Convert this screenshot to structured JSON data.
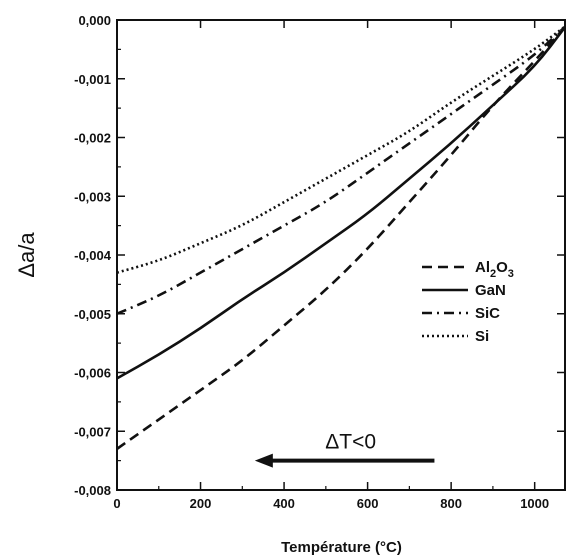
{
  "chart_data": {
    "type": "line",
    "title": "",
    "xlabel": "Température (°C)",
    "ylabel": "Δa/a",
    "xlim": [
      0,
      1075
    ],
    "ylim": [
      -0.008,
      0.0
    ],
    "x_ticks": [
      0,
      200,
      400,
      600,
      800,
      1000
    ],
    "x_tick_labels": [
      "0",
      "200",
      "400",
      "600",
      "800",
      "1000"
    ],
    "y_ticks": [
      0.0,
      -0.001,
      -0.002,
      -0.003,
      -0.004,
      -0.005,
      -0.006,
      -0.007,
      -0.008
    ],
    "y_tick_labels": [
      "0,000",
      "-0,001",
      "-0,002",
      "-0,003",
      "-0,004",
      "-0,005",
      "-0,006",
      "-0,007",
      "-0,008"
    ],
    "grid": false,
    "legend_position": "right-middle",
    "series": [
      {
        "name": "Al2O3",
        "legend_main": "Al",
        "legend_sub1": "2",
        "legend_mid": "O",
        "legend_sub2": "3",
        "style": "dashed",
        "x": [
          0,
          100,
          200,
          300,
          400,
          500,
          600,
          700,
          800,
          900,
          1000,
          1075
        ],
        "y": [
          -0.0073,
          -0.0068,
          -0.0063,
          -0.0058,
          -0.0052,
          -0.0046,
          -0.0039,
          -0.0031,
          -0.0023,
          -0.00145,
          -0.0007,
          -0.0001
        ]
      },
      {
        "name": "GaN",
        "style": "solid",
        "x": [
          0,
          100,
          200,
          300,
          400,
          500,
          600,
          700,
          800,
          900,
          1000,
          1075
        ],
        "y": [
          -0.0061,
          -0.0057,
          -0.00525,
          -0.00475,
          -0.0043,
          -0.0038,
          -0.0033,
          -0.0027,
          -0.0021,
          -0.00145,
          -0.0008,
          -0.0001
        ]
      },
      {
        "name": "SiC",
        "style": "dashdot",
        "x": [
          0,
          100,
          200,
          300,
          400,
          500,
          600,
          700,
          800,
          900,
          1000,
          1075
        ],
        "y": [
          -0.005,
          -0.0047,
          -0.0043,
          -0.0039,
          -0.0035,
          -0.0031,
          -0.0026,
          -0.0021,
          -0.0016,
          -0.0011,
          -0.0006,
          -0.0001
        ]
      },
      {
        "name": "Si",
        "style": "dotted",
        "x": [
          0,
          100,
          200,
          300,
          400,
          500,
          600,
          700,
          800,
          900,
          1000,
          1075
        ],
        "y": [
          -0.0043,
          -0.0041,
          -0.0038,
          -0.0035,
          -0.0031,
          -0.0027,
          -0.0023,
          -0.0019,
          -0.0014,
          -0.00095,
          -0.0005,
          -0.0001
        ]
      }
    ],
    "annotation": {
      "text": "ΔT<0",
      "arrow": "left",
      "arrow_from_x": 760,
      "arrow_to_x": 330,
      "arrow_y": -0.0075
    }
  }
}
